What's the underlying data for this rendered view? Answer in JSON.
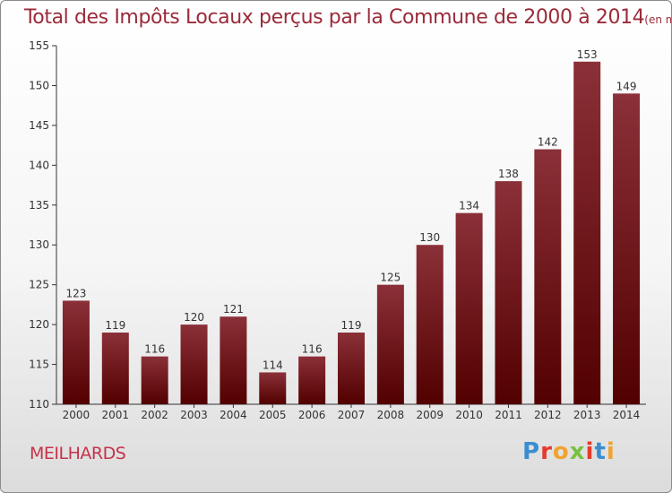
{
  "title": "Total des Impôts Locaux perçus par la Commune de 2000 à 2014",
  "unit": "(en milliers d'€)",
  "commune": "MEILHARDS",
  "logo": "Proxiti",
  "colors": {
    "title": "#9a2b3a",
    "bar_top": "#8b3038",
    "bar_bottom": "#520000",
    "commune": "#c4334a",
    "logo_letters": [
      "#3a8ed0",
      "#e53a2c",
      "#f2a22e",
      "#7ac043",
      "#e53a2c",
      "#3a8ed0",
      "#f2a22e"
    ]
  },
  "chart_data": {
    "type": "bar",
    "categories": [
      "2000",
      "2001",
      "2002",
      "2003",
      "2004",
      "2005",
      "2006",
      "2007",
      "2008",
      "2009",
      "2010",
      "2011",
      "2012",
      "2013",
      "2014"
    ],
    "values": [
      123,
      119,
      116,
      120,
      121,
      114,
      116,
      119,
      125,
      130,
      134,
      138,
      142,
      153,
      149
    ],
    "ylim": [
      110,
      155
    ],
    "yticks": [
      110,
      115,
      120,
      125,
      130,
      135,
      140,
      145,
      150,
      155
    ],
    "xlabel": "",
    "ylabel": "",
    "grid": false,
    "data_labels": true
  }
}
